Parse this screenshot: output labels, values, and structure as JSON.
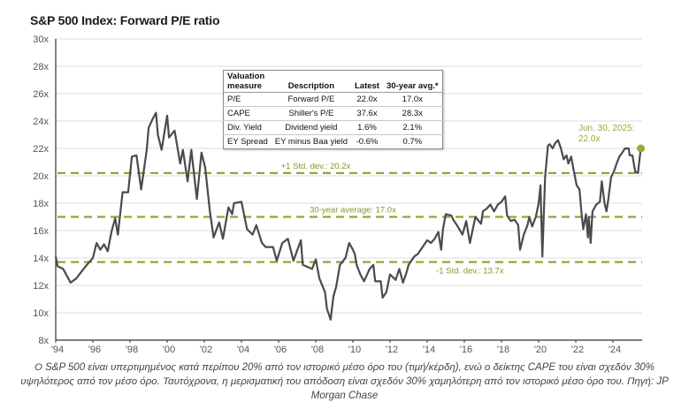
{
  "chart_data": {
    "type": "line",
    "title": "S&P 500 Index: Forward P/E ratio",
    "xlabel": "",
    "ylabel": "",
    "xlim": [
      1994,
      2025.5
    ],
    "ylim": [
      8,
      30
    ],
    "grid": true,
    "y_ticks": [
      8,
      10,
      12,
      14,
      16,
      18,
      20,
      22,
      24,
      26,
      28,
      30
    ],
    "y_tick_labels": [
      "8x",
      "10x",
      "12x",
      "14x",
      "16x",
      "18x",
      "20x",
      "22x",
      "24x",
      "26x",
      "28x",
      "30x"
    ],
    "x_ticks": [
      1994,
      1996,
      1998,
      2000,
      2002,
      2004,
      2006,
      2008,
      2010,
      2012,
      2014,
      2016,
      2018,
      2020,
      2022,
      2024
    ],
    "x_tick_labels": [
      "'94",
      "'96",
      "'98",
      "'00",
      "'02",
      "'04",
      "'06",
      "'08",
      "'10",
      "'12",
      "'14",
      "'16",
      "'18",
      "'20",
      "'22",
      "'24"
    ],
    "series": [
      {
        "name": "Forward P/E",
        "color": "#4a4a4f",
        "points": [
          [
            1994.0,
            14.1
          ],
          [
            1994.1,
            13.4
          ],
          [
            1994.4,
            13.2
          ],
          [
            1994.6,
            12.7
          ],
          [
            1994.8,
            12.2
          ],
          [
            1995.1,
            12.5
          ],
          [
            1995.5,
            13.2
          ],
          [
            1995.8,
            13.7
          ],
          [
            1996.0,
            14.0
          ],
          [
            1996.2,
            15.1
          ],
          [
            1996.4,
            14.6
          ],
          [
            1996.6,
            15.0
          ],
          [
            1996.8,
            14.5
          ],
          [
            1997.0,
            15.9
          ],
          [
            1997.2,
            16.9
          ],
          [
            1997.35,
            15.7
          ],
          [
            1997.6,
            18.8
          ],
          [
            1997.9,
            18.8
          ],
          [
            1998.1,
            21.4
          ],
          [
            1998.35,
            21.5
          ],
          [
            1998.6,
            19.0
          ],
          [
            1998.9,
            21.9
          ],
          [
            1999.0,
            23.5
          ],
          [
            1999.2,
            24.1
          ],
          [
            1999.4,
            24.6
          ],
          [
            1999.5,
            23.0
          ],
          [
            1999.7,
            21.9
          ],
          [
            2000.0,
            24.4
          ],
          [
            2000.1,
            22.8
          ],
          [
            2000.4,
            23.3
          ],
          [
            2000.7,
            20.9
          ],
          [
            2000.85,
            21.9
          ],
          [
            2001.1,
            19.6
          ],
          [
            2001.3,
            21.9
          ],
          [
            2001.6,
            18.3
          ],
          [
            2001.85,
            21.7
          ],
          [
            2002.05,
            20.6
          ],
          [
            2002.3,
            17.4
          ],
          [
            2002.5,
            15.5
          ],
          [
            2002.8,
            16.6
          ],
          [
            2003.0,
            15.4
          ],
          [
            2003.3,
            17.7
          ],
          [
            2003.5,
            17.2
          ],
          [
            2003.6,
            18.0
          ],
          [
            2004.0,
            18.1
          ],
          [
            2004.3,
            16.1
          ],
          [
            2004.6,
            15.7
          ],
          [
            2004.8,
            16.4
          ],
          [
            2005.1,
            15.1
          ],
          [
            2005.3,
            14.8
          ],
          [
            2005.7,
            14.8
          ],
          [
            2005.9,
            13.8
          ],
          [
            2006.2,
            15.1
          ],
          [
            2006.5,
            15.4
          ],
          [
            2006.8,
            13.8
          ],
          [
            2007.2,
            15.3
          ],
          [
            2007.3,
            13.5
          ],
          [
            2007.8,
            13.2
          ],
          [
            2008.0,
            13.9
          ],
          [
            2008.2,
            12.5
          ],
          [
            2008.5,
            11.5
          ],
          [
            2008.6,
            10.3
          ],
          [
            2008.8,
            9.5
          ],
          [
            2008.95,
            11.2
          ],
          [
            2009.1,
            11.9
          ],
          [
            2009.3,
            13.5
          ],
          [
            2009.6,
            14.0
          ],
          [
            2009.8,
            15.1
          ],
          [
            2010.0,
            14.6
          ],
          [
            2010.1,
            14.3
          ],
          [
            2010.2,
            13.5
          ],
          [
            2010.4,
            12.8
          ],
          [
            2010.6,
            12.3
          ],
          [
            2010.9,
            13.2
          ],
          [
            2011.1,
            13.5
          ],
          [
            2011.2,
            12.3
          ],
          [
            2011.5,
            12.3
          ],
          [
            2011.6,
            11.1
          ],
          [
            2011.8,
            11.5
          ],
          [
            2012.0,
            12.8
          ],
          [
            2012.3,
            12.4
          ],
          [
            2012.5,
            13.2
          ],
          [
            2012.7,
            12.2
          ],
          [
            2012.9,
            13.0
          ],
          [
            2013.0,
            13.5
          ],
          [
            2013.3,
            14.1
          ],
          [
            2013.5,
            14.3
          ],
          [
            2013.8,
            14.9
          ],
          [
            2014.0,
            15.3
          ],
          [
            2014.2,
            15.1
          ],
          [
            2014.4,
            15.4
          ],
          [
            2014.6,
            15.9
          ],
          [
            2014.75,
            14.6
          ],
          [
            2014.85,
            16.1
          ],
          [
            2015.0,
            17.2
          ],
          [
            2015.3,
            17.1
          ],
          [
            2015.4,
            16.8
          ],
          [
            2015.6,
            16.4
          ],
          [
            2015.9,
            15.7
          ],
          [
            2016.1,
            16.7
          ],
          [
            2016.3,
            15.1
          ],
          [
            2016.5,
            16.4
          ],
          [
            2016.6,
            17.0
          ],
          [
            2016.9,
            16.5
          ],
          [
            2017.0,
            17.4
          ],
          [
            2017.2,
            17.6
          ],
          [
            2017.4,
            17.9
          ],
          [
            2017.6,
            17.4
          ],
          [
            2017.8,
            17.9
          ],
          [
            2018.0,
            18.1
          ],
          [
            2018.2,
            18.5
          ],
          [
            2018.3,
            17.1
          ],
          [
            2018.5,
            16.7
          ],
          [
            2018.7,
            16.8
          ],
          [
            2018.9,
            16.4
          ],
          [
            2019.0,
            14.6
          ],
          [
            2019.2,
            15.7
          ],
          [
            2019.4,
            16.4
          ],
          [
            2019.5,
            17.0
          ],
          [
            2019.65,
            16.3
          ],
          [
            2019.85,
            17.0
          ],
          [
            2020.0,
            18.0
          ],
          [
            2020.1,
            19.3
          ],
          [
            2020.2,
            14.1
          ],
          [
            2020.35,
            19.9
          ],
          [
            2020.5,
            22.2
          ],
          [
            2020.6,
            22.3
          ],
          [
            2020.75,
            22.0
          ],
          [
            2020.9,
            22.4
          ],
          [
            2021.05,
            22.6
          ],
          [
            2021.2,
            22.0
          ],
          [
            2021.35,
            21.2
          ],
          [
            2021.5,
            21.5
          ],
          [
            2021.6,
            20.9
          ],
          [
            2021.75,
            21.4
          ],
          [
            2021.9,
            20.3
          ],
          [
            2022.05,
            19.3
          ],
          [
            2022.2,
            19.0
          ],
          [
            2022.3,
            17.4
          ],
          [
            2022.4,
            16.1
          ],
          [
            2022.55,
            17.2
          ],
          [
            2022.65,
            15.5
          ],
          [
            2022.7,
            17.0
          ],
          [
            2022.8,
            15.1
          ],
          [
            2022.9,
            17.4
          ],
          [
            2023.1,
            17.9
          ],
          [
            2023.3,
            18.1
          ],
          [
            2023.4,
            19.6
          ],
          [
            2023.55,
            18.0
          ],
          [
            2023.65,
            17.4
          ],
          [
            2023.75,
            18.3
          ],
          [
            2023.9,
            19.9
          ],
          [
            2024.05,
            20.3
          ],
          [
            2024.2,
            20.9
          ],
          [
            2024.35,
            21.4
          ],
          [
            2024.5,
            21.7
          ],
          [
            2024.65,
            22.0
          ],
          [
            2024.85,
            22.0
          ],
          [
            2024.9,
            21.5
          ],
          [
            2025.05,
            21.5
          ],
          [
            2025.2,
            20.3
          ],
          [
            2025.35,
            20.2
          ],
          [
            2025.5,
            22.0
          ]
        ]
      }
    ],
    "reference_lines": [
      {
        "name": "+1 Std. dev.",
        "value": 20.2,
        "label": "+1 Std. dev.: 20.2x",
        "label_x": 2008.0,
        "label_pos": "above"
      },
      {
        "name": "30-year average",
        "value": 17.0,
        "label": "30-year average: 17.0x",
        "label_x": 2010.0,
        "label_pos": "above"
      },
      {
        "name": "-1 Std. dev.",
        "value": 13.7,
        "label": "-1 Std. dev.: 13.7x",
        "label_x": 2016.3,
        "label_pos": "below"
      }
    ],
    "reference_color": "#8fa832",
    "annotation": {
      "text_line1": "Jun. 30, 2025:",
      "text_line2": "22.0x",
      "x": 2025.5,
      "y": 22.0,
      "color": "#8fb03a"
    },
    "legend": "none"
  },
  "table": {
    "headers": [
      "Valuation measure",
      "Description",
      "Latest",
      "30-year avg.*"
    ],
    "header_line1": "Valuation",
    "header_line2": "measure",
    "rows": [
      [
        "P/E",
        "Forward P/E",
        "22.0x",
        "17.0x"
      ],
      [
        "CAPE",
        "Shiller's P/E",
        "37.6x",
        "28.3x"
      ],
      [
        "Div. Yield",
        "Dividend yield",
        "1.6%",
        "2.1%"
      ],
      [
        "EY Spread",
        "EY minus Baa yield",
        "-0.6%",
        "0.7%"
      ]
    ]
  },
  "caption": "Ο S&P 500 είναι υπερτιμημένος κατά περίπου 20% από τον ιστορικό μέσο όρο του (τιμή/κέρδη), ενώ ο δείκτης CAPE του είναι σχεδόν 30% υψηλότερος από τον μέσο όρο. Ταυτόχρονα, η μερισματική του απόδοση είναι σχεδόν 30% χαμηλότερη από τον ιστορικό μέσο όρο του. Πηγή: JP Morgan Chase"
}
